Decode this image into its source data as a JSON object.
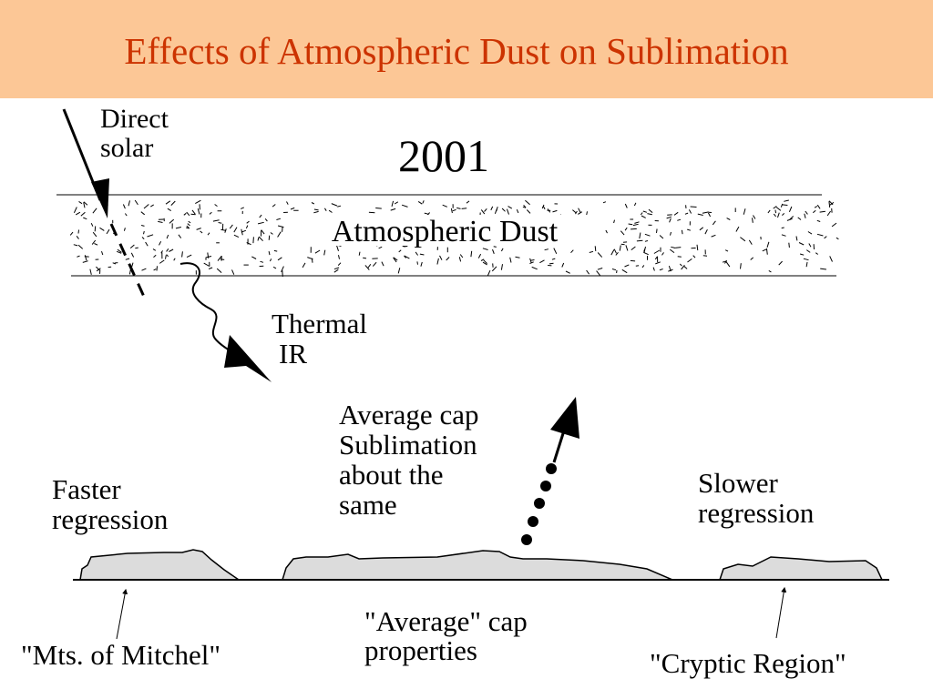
{
  "slide": {
    "title": "Effects of Atmospheric Dust on Sublimation"
  },
  "diagram": {
    "year": "2001",
    "atmosphere_label": "Atmospheric Dust",
    "direct_solar": [
      "Direct",
      "solar"
    ],
    "thermal_ir": [
      "Thermal",
      "IR"
    ],
    "average_sublimation": [
      "Average cap",
      "Sublimation",
      "about the",
      "same"
    ],
    "faster": [
      "Faster",
      "regression"
    ],
    "slower": [
      "Slower",
      "regression"
    ],
    "mitchel": "\"Mts. of Mitchel\"",
    "average_properties": [
      "\"Average\" cap",
      "properties"
    ],
    "cryptic": "\"Cryptic Region\""
  },
  "colors": {
    "title": "#cc3300",
    "title_bar": "#fcc796",
    "cap_fill": "#dcdcdc"
  }
}
